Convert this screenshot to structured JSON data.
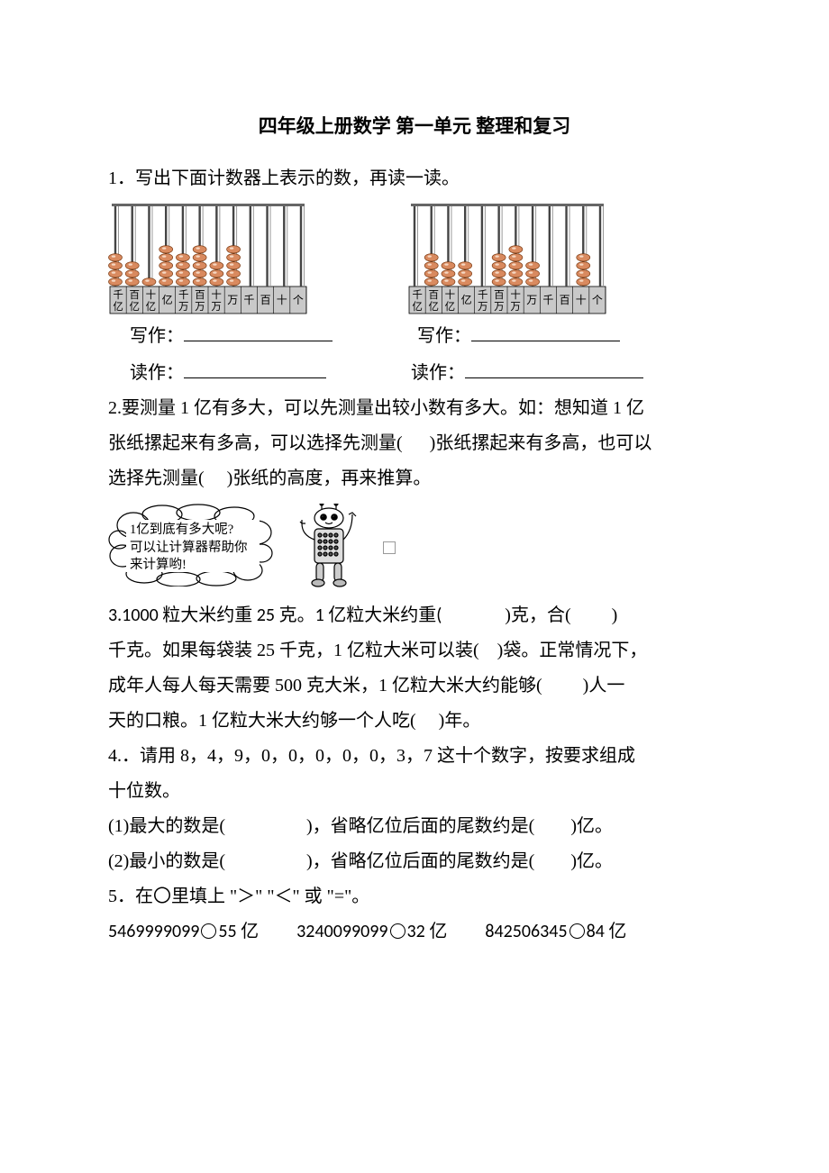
{
  "title": "四年级上册数学 第一单元 整理和复习",
  "q1": {
    "stem": "1．写出下面计数器上表示的数，再读一读。",
    "writeLabel": "写作：",
    "readLabel": "读作：",
    "blankWidthWrite": 165,
    "blankWidthRead1": 158,
    "blankWidthWrite2": 165,
    "blankWidthRead2": 198,
    "placeLabels": [
      "千亿",
      "百亿",
      "十亿",
      "亿",
      "千万",
      "百万",
      "十万",
      "万",
      "千",
      "百",
      "十",
      "个"
    ],
    "abacus1": {
      "beads": [
        4,
        3,
        1,
        5,
        4,
        5,
        3,
        5,
        0,
        0,
        0,
        0
      ],
      "beadColor": "#d98a5f",
      "rodColor": "#444444",
      "baseColor": "#c9c9c9"
    },
    "abacus2": {
      "beads": [
        0,
        4,
        3,
        3,
        0,
        4,
        5,
        3,
        0,
        0,
        4,
        0
      ],
      "beadColor": "#d98a5f",
      "rodColor": "#444444",
      "baseColor": "#c9c9c9"
    }
  },
  "q2": {
    "text1": "2.要测量 1 亿有多大，可以先测量出较小数有多大。如：想知道 1 亿",
    "text2a": "张纸摞起来有多高，可以选择先测量(",
    "gap2a": "      ",
    "text2b": ")张纸摞起来有多高，也可以",
    "text3a": "选择先测量(",
    "gap3a": "     ",
    "text3b": ")张纸的高度，再来推算。",
    "hint": {
      "line1": "1亿到底有多大呢?",
      "line2": "可以让计算器帮助你",
      "line3": "来计算哟!"
    }
  },
  "q3": {
    "a": "3.1000 粒大米约重 25 克。1 亿粒大米约重(",
    "b": ")克，合(",
    "c": ")",
    "d": "千克。如果每袋装 25 千克，1 亿粒大米可以装(",
    "e": ")袋。正常情况下，",
    "f": "成年人每人每天需要 500 克大米，1 亿粒大米大约能够(",
    "g": ")人一",
    "h": "天的口粮。1 亿粒大米大约够一个人吃(",
    "i": ")年。",
    "gapWide": "              ",
    "gapMed": "         ",
    "gapSmall": "    ",
    "gapTiny": "     "
  },
  "q4": {
    "stem1": "4.．请用 8，4，9，0，0，0，0，0，3，7 这十个数字，按要求组成",
    "stem2": "十位数。",
    "l1a": "(1)最大的数是(",
    "l1b": ")，省略亿位后面的尾数约是(",
    "l1c": ")亿。",
    "l2a": "(2)最小的数是(",
    "l2b": ")，省略亿位后面的尾数约是(",
    "l2c": ")亿。",
    "gapBig": "                  ",
    "gapSmall": "        "
  },
  "q5": {
    "stem": "5．在〇里填上 \"＞\" \"＜\" 或 \"=\"。",
    "a1": "5469999099",
    "a2": "55 亿",
    "b1": "3240099099",
    "b2": "32 亿",
    "c1": "842506345",
    "c2": "84 亿"
  }
}
